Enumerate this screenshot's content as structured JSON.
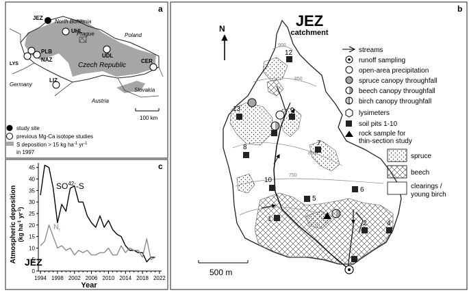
{
  "panel_a": {
    "letter": "a",
    "labels": {
      "jez": "JEZ",
      "north_bohemia": "North Bohemia",
      "uhl": "UHL",
      "plb": "PLB",
      "naz": "NAZ",
      "lys": "LYS",
      "prague": "Prague",
      "udl": "UDL",
      "czech_republic": "Czech Republic",
      "cer": "CER",
      "poland": "Poland",
      "germany": "Germany",
      "liz": "LIZ",
      "austria": "Austria",
      "slovakia": "Slovakia",
      "scale": "100 km"
    },
    "legend": {
      "study_site": "study site",
      "previous_studies": "previous Mg-Ca isotope studies",
      "s_deposition_prefix": "S deposition > 15 kg ha",
      "s_deposition_exp1": "-1",
      "s_deposition_mid": " yr",
      "s_deposition_exp2": "-1",
      "s_deposition_year": "in 1997"
    }
  },
  "panel_b": {
    "letter": "b",
    "title": "JEZ",
    "subtitle": "catchment",
    "north": "N",
    "scale": "500 m",
    "contours": [
      "900",
      "850",
      "800",
      "750"
    ],
    "pits": [
      "1",
      "2",
      "4",
      "5",
      "6",
      "7",
      "8",
      "9",
      "10",
      "12",
      "13"
    ],
    "legend": {
      "streams": "streams",
      "runoff": "runoff sampling",
      "open_area": "open-area precipitation",
      "spruce_tf": "spruce canopy throughfall",
      "beech_tf": "beech canopy throughfall",
      "birch_tf": "birch canopy throughfall",
      "lysimeters": "lysimeters",
      "soil_pits": "soil pits 1-10",
      "rock_line1": "rock sample for",
      "rock_line2": "thin-section study",
      "spruce": "spruce",
      "beech": "beech",
      "clearings_line1": "clearings /",
      "clearings_line2": "young birch"
    }
  },
  "panel_c": {
    "letter": "c",
    "site": "JEZ",
    "colors": {
      "so4": "#000000",
      "n": "#8c8c8c"
    },
    "chart_data": {
      "type": "line",
      "xlabel": "Year",
      "ylabel": "Atmospheric deposition (kg ha⁻¹ yr⁻¹)",
      "xlim": [
        1993.5,
        2022.5
      ],
      "ylim": [
        0,
        47
      ],
      "xticks": [
        "1994",
        "1998",
        "2002",
        "2006",
        "2010",
        "2014",
        "2018",
        "2022"
      ],
      "yticks": [
        "0",
        "5",
        "10",
        "15",
        "20",
        "25",
        "30",
        "35",
        "40",
        "45"
      ],
      "series": [
        {
          "name": "SO₄²⁻-S",
          "x": [
            1994,
            1995,
            1996,
            1997,
            1998,
            1999,
            2000,
            2001,
            2002,
            2003,
            2004,
            2005,
            2006,
            2007,
            2008,
            2009,
            2010,
            2011,
            2012,
            2013,
            2014,
            2015,
            2016,
            2017,
            2018,
            2019,
            2020,
            2021
          ],
          "values": [
            33,
            46,
            45,
            36,
            21,
            29,
            26,
            36,
            37,
            30,
            30,
            24,
            21,
            19,
            24,
            19,
            22,
            18,
            16,
            15,
            11,
            9,
            9,
            8,
            8,
            4,
            6,
            6
          ]
        },
        {
          "name": "N",
          "x": [
            1994,
            1995,
            1996,
            1997,
            1998,
            1999,
            2000,
            2001,
            2002,
            2003,
            2004,
            2005,
            2006,
            2007,
            2008,
            2009,
            2010,
            2011,
            2012,
            2013,
            2014,
            2015,
            2016,
            2017,
            2018,
            2019,
            2020,
            2021
          ],
          "values": [
            11,
            13,
            20,
            15,
            10,
            11,
            9,
            10,
            7,
            9,
            8,
            9,
            7,
            7,
            8,
            8,
            10,
            7,
            7,
            11,
            8,
            10,
            9,
            9,
            6,
            14,
            5,
            6
          ]
        }
      ]
    }
  }
}
